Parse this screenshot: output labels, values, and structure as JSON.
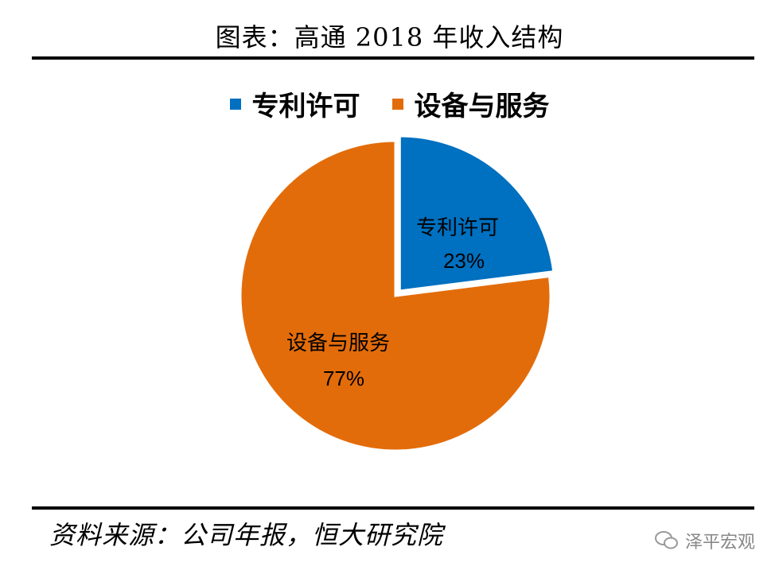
{
  "title": "图表：高通 2018 年收入结构",
  "source": "资料来源：公司年报，恒大研究院",
  "watermark": "泽平宏观",
  "chart_data": {
    "type": "pie",
    "categories": [
      "专利许可",
      "设备与服务"
    ],
    "values": [
      23,
      77
    ],
    "value_labels": [
      "23%",
      "77%"
    ],
    "colors": [
      "#0070C0",
      "#E36C0A"
    ],
    "legend_position": "top"
  }
}
